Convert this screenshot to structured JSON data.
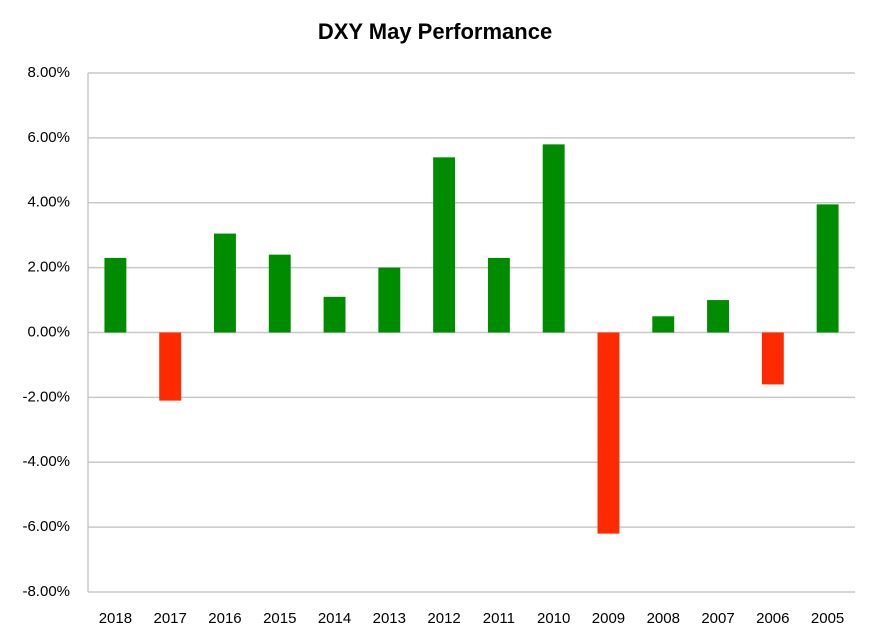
{
  "chart_data": {
    "type": "bar",
    "title": "DXY May Performance",
    "categories": [
      "2018",
      "2017",
      "2016",
      "2015",
      "2014",
      "2013",
      "2012",
      "2011",
      "2010",
      "2009",
      "2008",
      "2007",
      "2006",
      "2005"
    ],
    "values": [
      2.3,
      -2.1,
      3.05,
      2.4,
      1.1,
      2.0,
      5.4,
      2.3,
      5.8,
      -6.2,
      0.5,
      1.0,
      -1.6,
      3.95
    ],
    "positive_color": "#008c00",
    "negative_color": "#ff2a00",
    "ylim": [
      -8,
      8
    ],
    "yticks": [
      {
        "value": -8,
        "label": "-8.00%"
      },
      {
        "value": -6,
        "label": "-6.00%"
      },
      {
        "value": -4,
        "label": "-4.00%"
      },
      {
        "value": -2,
        "label": "-2.00%"
      },
      {
        "value": 0,
        "label": "0.00%"
      },
      {
        "value": 2,
        "label": "2.00%"
      },
      {
        "value": 4,
        "label": "4.00%"
      },
      {
        "value": 6,
        "label": "6.00%"
      },
      {
        "value": 8,
        "label": "8.00%"
      }
    ],
    "grid": true
  }
}
